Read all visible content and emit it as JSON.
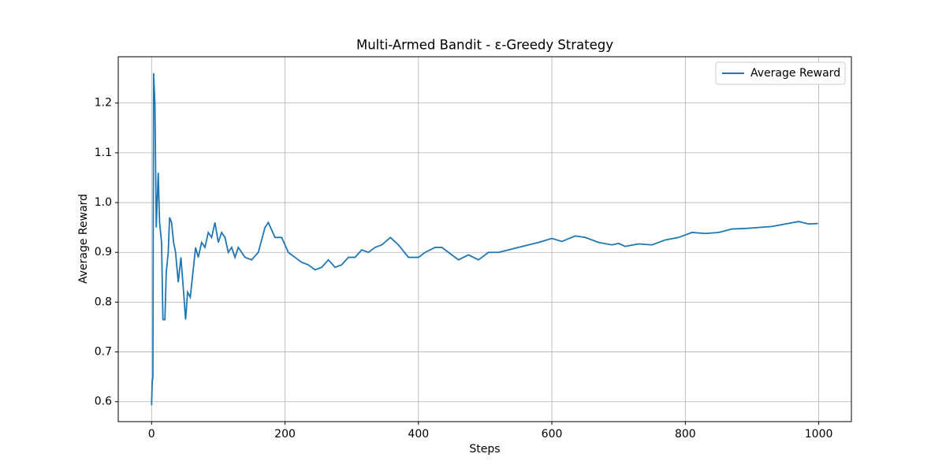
{
  "chart_data": {
    "type": "line",
    "title": "Multi-Armed Bandit - ε-Greedy Strategy",
    "x_label": "Steps",
    "y_label": "Average Reward",
    "x": [
      0,
      1,
      2,
      3,
      5,
      7,
      10,
      12,
      15,
      17,
      20,
      22,
      25,
      27,
      30,
      33,
      36,
      40,
      44,
      48,
      51,
      54,
      58,
      62,
      66,
      70,
      75,
      80,
      85,
      90,
      95,
      100,
      105,
      110,
      115,
      120,
      125,
      130,
      140,
      150,
      160,
      170,
      175,
      185,
      195,
      205,
      215,
      225,
      235,
      245,
      255,
      265,
      275,
      285,
      295,
      305,
      315,
      325,
      335,
      345,
      358,
      370,
      385,
      400,
      410,
      425,
      435,
      445,
      460,
      475,
      490,
      505,
      520,
      535,
      550,
      565,
      580,
      600,
      615,
      635,
      650,
      670,
      690,
      700,
      710,
      730,
      750,
      770,
      790,
      810,
      830,
      850,
      870,
      890,
      910,
      930,
      950,
      970,
      985,
      999
    ],
    "series": [
      {
        "name": "Average Reward",
        "color": "#1f77b4",
        "values": [
          0.593,
          0.64,
          0.65,
          1.26,
          1.2,
          0.95,
          1.06,
          0.96,
          0.92,
          0.765,
          0.765,
          0.86,
          0.9,
          0.97,
          0.96,
          0.92,
          0.9,
          0.84,
          0.89,
          0.82,
          0.765,
          0.82,
          0.81,
          0.86,
          0.91,
          0.89,
          0.92,
          0.91,
          0.94,
          0.93,
          0.96,
          0.92,
          0.94,
          0.93,
          0.9,
          0.91,
          0.89,
          0.91,
          0.89,
          0.885,
          0.9,
          0.95,
          0.96,
          0.93,
          0.93,
          0.9,
          0.89,
          0.88,
          0.875,
          0.865,
          0.87,
          0.885,
          0.87,
          0.875,
          0.89,
          0.89,
          0.905,
          0.9,
          0.91,
          0.915,
          0.93,
          0.915,
          0.89,
          0.89,
          0.9,
          0.91,
          0.91,
          0.9,
          0.885,
          0.895,
          0.885,
          0.9,
          0.9,
          0.905,
          0.91,
          0.915,
          0.92,
          0.928,
          0.922,
          0.933,
          0.93,
          0.92,
          0.915,
          0.918,
          0.912,
          0.917,
          0.915,
          0.925,
          0.93,
          0.94,
          0.938,
          0.94,
          0.947,
          0.948,
          0.95,
          0.952,
          0.957,
          0.962,
          0.957,
          0.958
        ]
      }
    ],
    "xlim": [
      -49.95,
      1048.95
    ],
    "ylim": [
      0.56,
      1.293
    ],
    "xticks": [
      0,
      200,
      400,
      600,
      800,
      1000
    ],
    "yticks": [
      0.6,
      0.7,
      0.8,
      0.9,
      {
        "value": 1,
        "label": "1.0"
      },
      1.1,
      1.2
    ],
    "grid": true,
    "legend": "upper-right"
  }
}
